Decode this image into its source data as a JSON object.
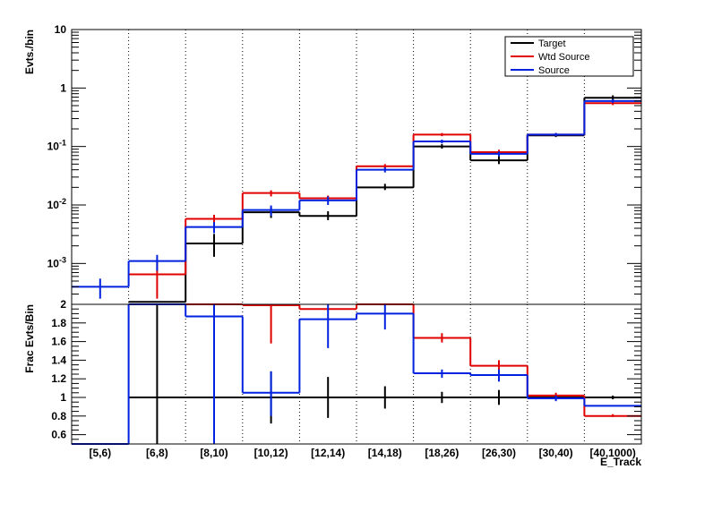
{
  "chart_data": [
    {
      "type": "line",
      "panel": "top",
      "ylabel": "Evts./bin",
      "yscale": "log",
      "ylim": [
        0.0002,
        10
      ],
      "y_ticks": [
        {
          "value": 0.001,
          "base": "10",
          "exp": "-3"
        },
        {
          "value": 0.01,
          "base": "10",
          "exp": "-2"
        },
        {
          "value": 0.1,
          "base": "10",
          "exp": "-1"
        },
        {
          "value": 1,
          "base": "1",
          "exp": ""
        },
        {
          "value": 10,
          "base": "10",
          "exp": ""
        }
      ],
      "categories": [
        "[5,6)",
        "[6,8)",
        "[8,10)",
        "[10,12)",
        "[12,14)",
        "[14,18)",
        "[18,26)",
        "[26,30)",
        "[30,40)",
        "[40,1000)"
      ],
      "grid": {
        "x": true,
        "y": false
      },
      "legend": {
        "placement": "top-right"
      },
      "series": [
        {
          "name": "Target",
          "color": "#000000",
          "values": [
            null,
            0.00022,
            0.0022,
            0.0075,
            0.0065,
            0.02,
            0.1,
            0.058,
            0.155,
            0.68
          ],
          "err_low": [
            null,
            null,
            0.0013,
            0.006,
            0.0055,
            0.018,
            0.092,
            0.05,
            0.145,
            0.62
          ],
          "err_high": [
            null,
            null,
            0.0032,
            0.0092,
            0.0078,
            0.023,
            0.11,
            0.068,
            0.17,
            0.75
          ]
        },
        {
          "name": "Wtd Source",
          "color": "#e00000",
          "values": [
            null,
            0.00065,
            0.0058,
            0.016,
            0.013,
            0.046,
            0.16,
            0.08,
            0.16,
            0.55
          ],
          "err_low": [
            null,
            0.00025,
            0.0048,
            0.014,
            0.0115,
            0.042,
            0.15,
            0.072,
            0.15,
            0.51
          ],
          "err_high": [
            null,
            0.0011,
            0.0068,
            0.0178,
            0.0145,
            0.05,
            0.17,
            0.088,
            0.17,
            0.6
          ]
        },
        {
          "name": "Source",
          "color": "#0022e0",
          "values": [
            0.0004,
            0.0011,
            0.0042,
            0.0082,
            0.012,
            0.04,
            0.122,
            0.075,
            0.16,
            0.6
          ],
          "err_low": [
            0.00025,
            0.00075,
            0.0033,
            0.0065,
            0.01,
            0.036,
            0.113,
            0.068,
            0.15,
            0.56
          ],
          "err_high": [
            0.00055,
            0.0014,
            0.0051,
            0.0098,
            0.014,
            0.044,
            0.131,
            0.082,
            0.17,
            0.64
          ]
        }
      ]
    },
    {
      "type": "line",
      "panel": "bottom",
      "ylabel": "Frac Evts/Bin",
      "xlabel": "E_Track",
      "ylim": [
        0.5,
        2.0
      ],
      "y_ticks": [
        "0.6",
        "0.8",
        "1",
        "1.2",
        "1.4",
        "1.6",
        "1.8",
        "2"
      ],
      "categories": [
        "[5,6)",
        "[6,8)",
        "[8,10)",
        "[10,12)",
        "[12,14)",
        "[14,18)",
        "[18,26)",
        "[26,30)",
        "[30,40)",
        "[40,1000)"
      ],
      "series": [
        {
          "name": "Target",
          "color": "#000000",
          "values": [
            null,
            1.0,
            1.0,
            1.0,
            1.0,
            1.0,
            1.0,
            1.0,
            1.0,
            1.0
          ],
          "err_low": [
            null,
            0.5,
            0.5,
            0.72,
            0.78,
            0.88,
            0.94,
            0.92,
            0.97,
            0.98
          ],
          "err_high": [
            null,
            2.0,
            2.0,
            1.28,
            1.22,
            1.12,
            1.06,
            1.08,
            1.03,
            1.02
          ]
        },
        {
          "name": "Wtd Source",
          "color": "#e00000",
          "values": [
            null,
            2.0,
            2.0,
            1.99,
            1.95,
            2.0,
            1.64,
            1.34,
            1.02,
            0.8
          ],
          "err_low": [
            null,
            null,
            null,
            1.58,
            null,
            null,
            1.59,
            1.28,
            0.99,
            0.79
          ],
          "err_high": [
            null,
            null,
            null,
            2.0,
            null,
            null,
            1.69,
            1.4,
            1.05,
            0.82
          ]
        },
        {
          "name": "Source",
          "color": "#0022e0",
          "values": [
            0.5,
            2.0,
            1.87,
            1.05,
            1.84,
            1.9,
            1.26,
            1.24,
            0.99,
            0.91
          ],
          "err_low": [
            null,
            null,
            0.5,
            0.8,
            1.53,
            1.73,
            1.21,
            1.17,
            0.96,
            null
          ],
          "err_high": [
            null,
            null,
            2.0,
            1.28,
            2.0,
            2.0,
            1.3,
            1.3,
            1.02,
            null
          ]
        }
      ]
    }
  ]
}
